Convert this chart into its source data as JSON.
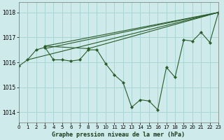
{
  "title": "Graphe pression niveau de la mer (hPa)",
  "bg_color": "#ceeaea",
  "grid_color": "#a8d5d5",
  "line_color": "#2a5c2a",
  "marker_color": "#2a5c2a",
  "xlim": [
    0,
    23
  ],
  "ylim": [
    1013.6,
    1018.4
  ],
  "yticks": [
    1014,
    1015,
    1016,
    1017,
    1018
  ],
  "xticks": [
    0,
    1,
    2,
    3,
    4,
    5,
    6,
    7,
    8,
    9,
    10,
    11,
    12,
    13,
    14,
    15,
    16,
    17,
    18,
    19,
    20,
    21,
    22,
    23
  ],
  "main_x": [
    0,
    1,
    2,
    3,
    4,
    5,
    6,
    7,
    8,
    9,
    10,
    11,
    12,
    13,
    14,
    15,
    16,
    17,
    18,
    19,
    20,
    21,
    22,
    23
  ],
  "main_y": [
    1015.85,
    1016.1,
    1016.5,
    1016.6,
    1016.1,
    1016.1,
    1016.05,
    1016.1,
    1016.5,
    1016.5,
    1015.95,
    1015.5,
    1015.2,
    1014.2,
    1014.5,
    1014.45,
    1014.1,
    1015.8,
    1015.4,
    1016.9,
    1016.85,
    1017.2,
    1016.8,
    1018.0
  ],
  "fan_lines": [
    {
      "x": [
        1,
        23
      ],
      "y": [
        1016.1,
        1018.0
      ]
    },
    {
      "x": [
        3,
        23
      ],
      "y": [
        1016.65,
        1018.0
      ]
    },
    {
      "x": [
        3,
        8,
        23
      ],
      "y": [
        1016.65,
        1016.55,
        1018.0
      ],
      "has_markers": true
    },
    {
      "x": [
        3,
        23
      ],
      "y": [
        1016.55,
        1018.0
      ]
    }
  ]
}
